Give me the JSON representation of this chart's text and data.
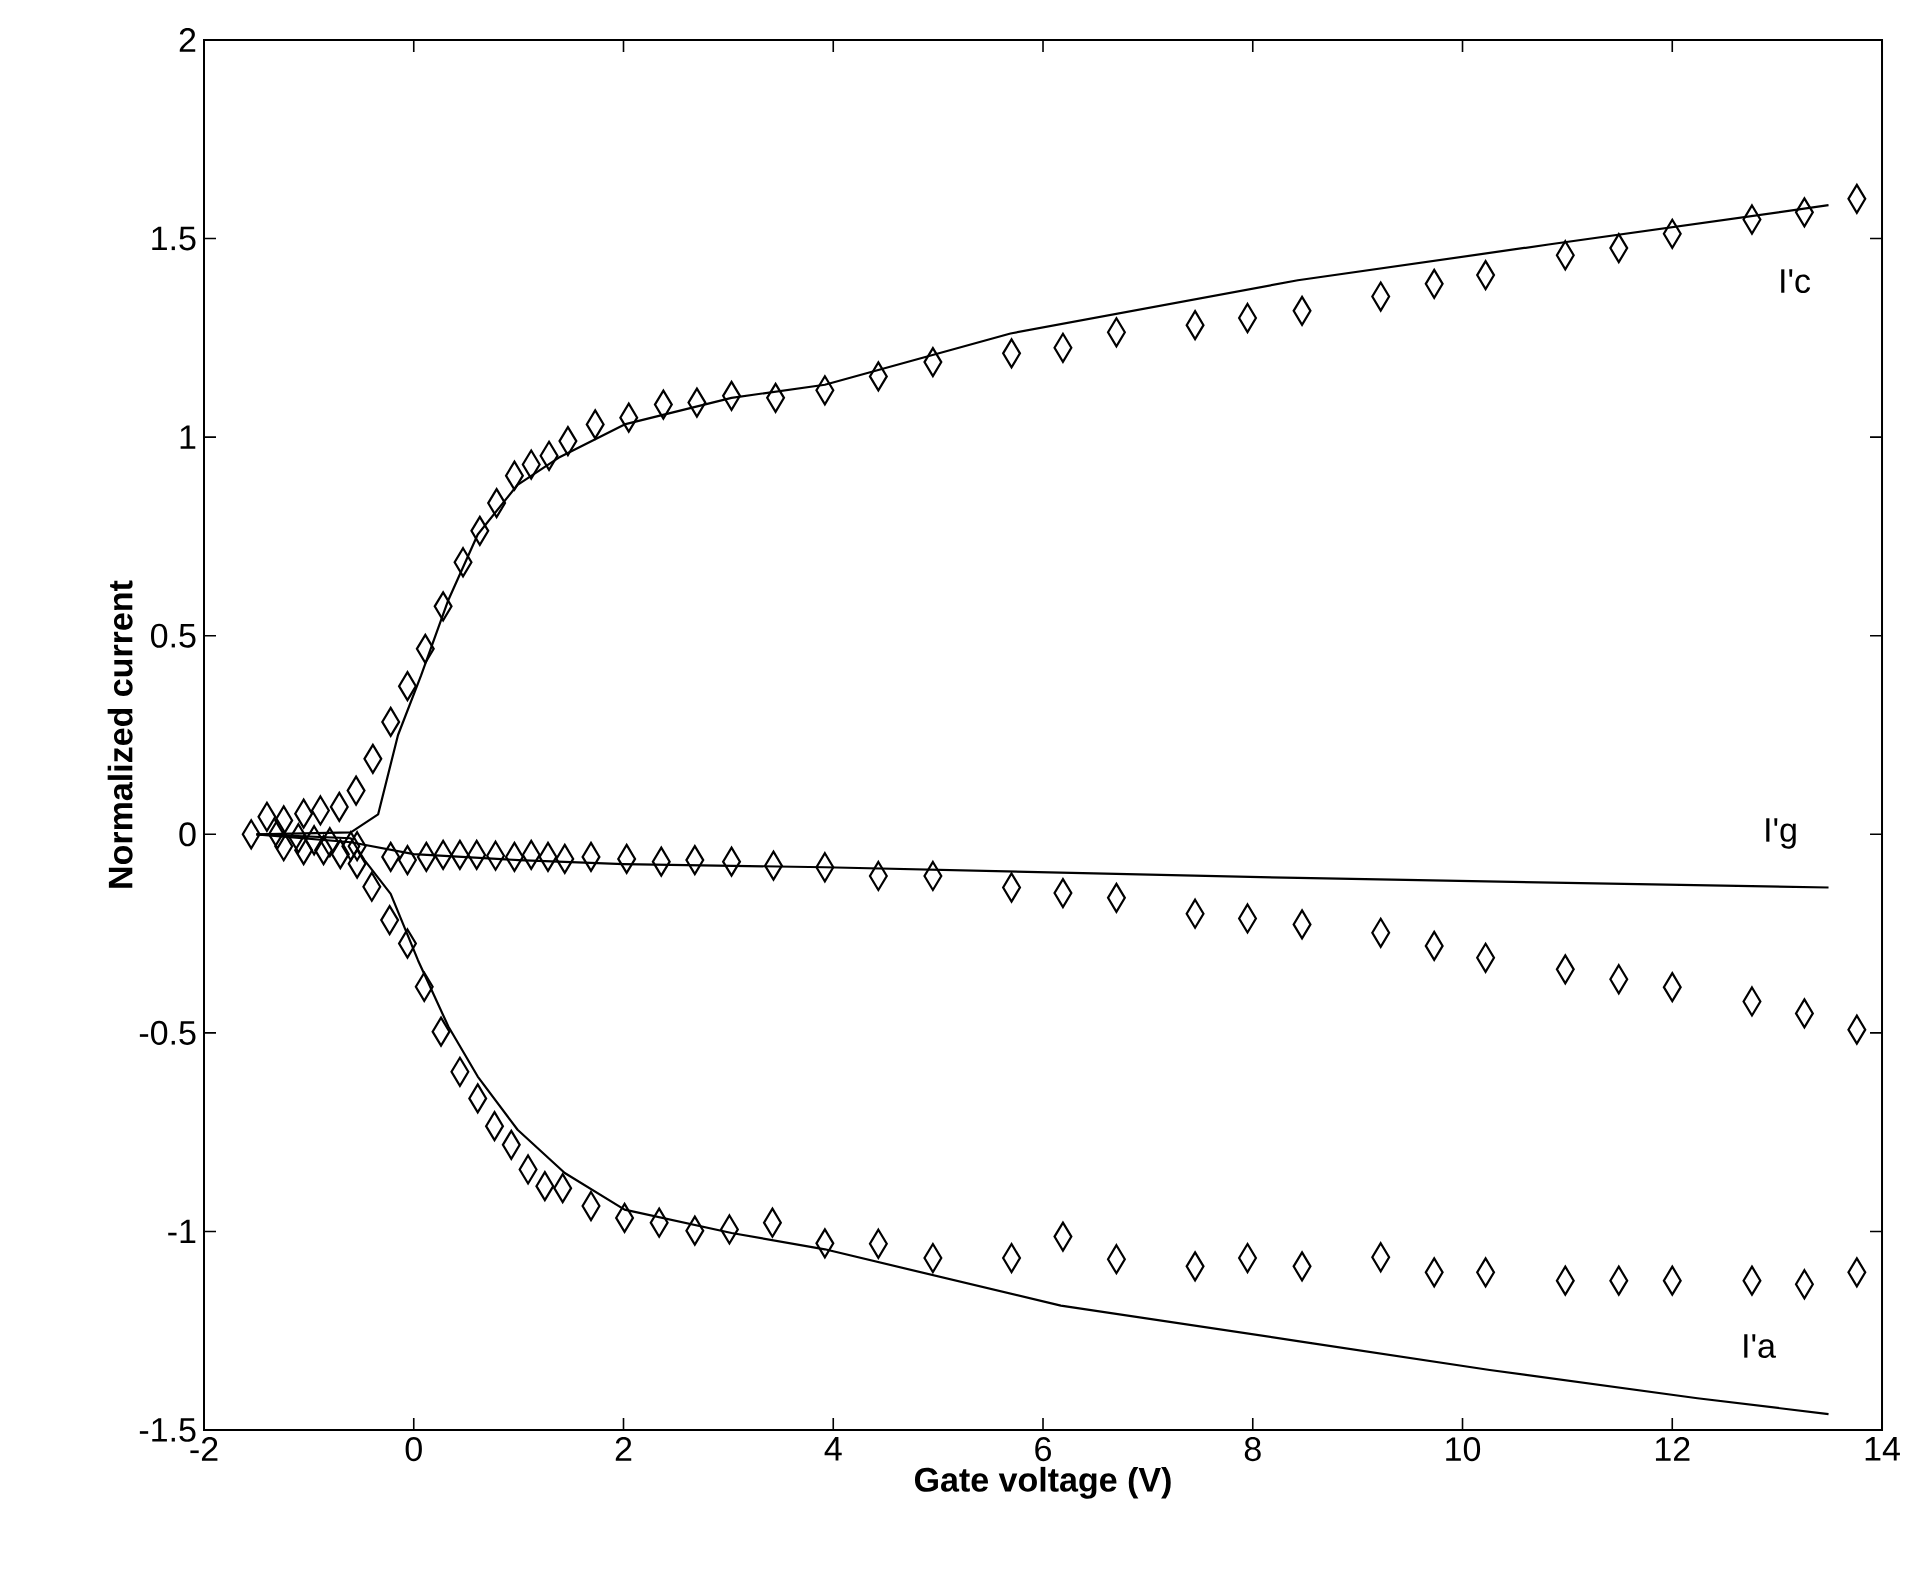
{
  "chart_data": {
    "type": "scatter",
    "xlabel": "Gate voltage (V)",
    "ylabel": "Normalized current",
    "xlim": [
      -2,
      14
    ],
    "ylim": [
      -1.5,
      2
    ],
    "xticks": [
      -2,
      0,
      2,
      4,
      6,
      8,
      10,
      12,
      14
    ],
    "yticks": [
      -1.5,
      -1,
      -0.5,
      0,
      0.5,
      1,
      1.5,
      2
    ],
    "grid": false,
    "series": [
      {
        "marker": "diamond",
        "color": "#000000",
        "x": [
          -1.55,
          -1.4,
          -1.24,
          -1.05,
          -0.89,
          -0.71,
          -0.55,
          -0.39,
          -0.22,
          -0.06,
          0.11,
          0.28,
          0.47,
          0.63,
          0.79,
          0.96,
          1.12,
          1.29,
          1.47,
          1.73,
          2.05,
          2.38,
          2.7,
          3.03,
          3.45,
          3.92,
          4.43,
          4.95,
          5.7,
          6.19,
          6.7,
          7.45,
          7.95,
          8.47,
          9.22,
          9.73,
          10.22,
          10.98,
          11.49,
          12.0,
          12.76,
          13.26,
          13.76
        ],
        "values": [
          0.0,
          0.044,
          0.035,
          0.052,
          0.06,
          0.069,
          0.11,
          0.19,
          0.283,
          0.373,
          0.467,
          0.574,
          0.685,
          0.764,
          0.834,
          0.903,
          0.931,
          0.953,
          0.99,
          1.032,
          1.049,
          1.082,
          1.087,
          1.104,
          1.099,
          1.118,
          1.153,
          1.189,
          1.211,
          1.225,
          1.264,
          1.282,
          1.3,
          1.318,
          1.354,
          1.386,
          1.408,
          1.458,
          1.476,
          1.512,
          1.548,
          1.566,
          1.6
        ]
      },
      {
        "marker": "diamond",
        "color": "#000000",
        "x": [
          -1.3,
          -1.1,
          -0.95,
          -0.8,
          -0.6,
          -0.54,
          -0.22,
          -0.06,
          0.12,
          0.28,
          0.44,
          0.6,
          0.78,
          0.96,
          1.12,
          1.28,
          1.44,
          1.69,
          2.03,
          2.36,
          2.68,
          3.03,
          3.43,
          3.92,
          4.43,
          4.95,
          5.7,
          6.19,
          6.7,
          7.45,
          7.95,
          8.47,
          9.22,
          9.73,
          10.22,
          10.98,
          11.49,
          12.0,
          12.76,
          13.26,
          13.76
        ],
        "values": [
          0.0,
          -0.01,
          -0.015,
          -0.02,
          -0.03,
          -0.03,
          -0.057,
          -0.065,
          -0.057,
          -0.052,
          -0.052,
          -0.052,
          -0.054,
          -0.057,
          -0.052,
          -0.057,
          -0.062,
          -0.057,
          -0.062,
          -0.069,
          -0.065,
          -0.069,
          -0.079,
          -0.083,
          -0.105,
          -0.105,
          -0.134,
          -0.148,
          -0.16,
          -0.2,
          -0.212,
          -0.227,
          -0.248,
          -0.281,
          -0.311,
          -0.34,
          -0.365,
          -0.385,
          -0.421,
          -0.451,
          -0.492
        ]
      },
      {
        "marker": "diamond",
        "color": "#000000",
        "x": [
          -1.24,
          -1.05,
          -0.86,
          -0.7,
          -0.54,
          -0.4,
          -0.23,
          -0.06,
          0.1,
          0.26,
          0.44,
          0.61,
          0.77,
          0.93,
          1.09,
          1.25,
          1.42,
          1.69,
          2.01,
          2.34,
          2.68,
          3.01,
          3.42,
          3.92,
          4.43,
          4.95,
          5.7,
          6.19,
          6.7,
          7.45,
          7.95,
          8.47,
          9.22,
          9.73,
          10.22,
          10.98,
          11.49,
          12.0,
          12.76,
          13.26,
          13.76
        ],
        "values": [
          -0.03,
          -0.04,
          -0.04,
          -0.05,
          -0.074,
          -0.132,
          -0.216,
          -0.275,
          -0.384,
          -0.497,
          -0.598,
          -0.665,
          -0.735,
          -0.782,
          -0.844,
          -0.886,
          -0.891,
          -0.936,
          -0.966,
          -0.978,
          -0.998,
          -0.995,
          -0.978,
          -1.03,
          -1.031,
          -1.067,
          -1.067,
          -1.013,
          -1.07,
          -1.088,
          -1.067,
          -1.088,
          -1.065,
          -1.103,
          -1.103,
          -1.124,
          -1.124,
          -1.124,
          -1.124,
          -1.133,
          -1.103
        ]
      },
      {
        "type": "line",
        "marker": "none",
        "line_style": "solid",
        "color": "#000000",
        "x": [
          -1.5,
          -0.6,
          -0.34,
          -0.15,
          0.07,
          0.33,
          0.61,
          0.99,
          1.38,
          2.01,
          3.03,
          3.92,
          5.69,
          8.43,
          10.82,
          13.49
        ],
        "values": [
          0.0,
          0.005,
          0.05,
          0.25,
          0.4,
          0.59,
          0.755,
          0.88,
          0.948,
          1.032,
          1.099,
          1.132,
          1.261,
          1.395,
          1.485,
          1.584
        ]
      },
      {
        "type": "line",
        "marker": "none",
        "line_style": "solid",
        "color": "#000000",
        "x": [
          -1.5,
          -0.6,
          0.0,
          1.0,
          2.0,
          3.92,
          8.43,
          13.49
        ],
        "values": [
          0.0,
          -0.02,
          -0.05,
          -0.065,
          -0.075,
          -0.083,
          -0.11,
          -0.134
        ]
      },
      {
        "type": "line",
        "marker": "none",
        "line_style": "solid",
        "color": "#000000",
        "x": [
          -1.5,
          -0.6,
          -0.47,
          -0.22,
          0.04,
          0.33,
          0.61,
          0.99,
          1.44,
          2.01,
          3.03,
          3.92,
          6.17,
          8.43,
          10.26,
          12.24,
          13.49
        ],
        "values": [
          0.0,
          -0.01,
          -0.065,
          -0.15,
          -0.317,
          -0.484,
          -0.61,
          -0.744,
          -0.853,
          -0.945,
          -1.004,
          -1.045,
          -1.187,
          -1.276,
          -1.349,
          -1.42,
          -1.46
        ]
      }
    ],
    "annotations": [
      "I'c",
      "I'g",
      "I'a"
    ]
  }
}
